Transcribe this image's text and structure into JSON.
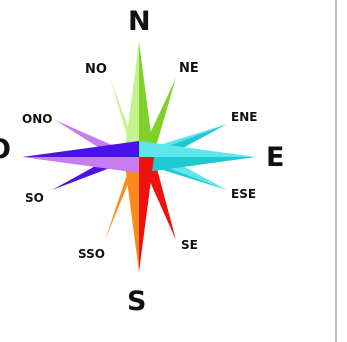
{
  "compass": {
    "labels": {
      "north": "N",
      "south": "S",
      "east": "E",
      "west": "O",
      "northwest": "NO",
      "northeast": "NE",
      "southwest": "SO",
      "southeast": "SE",
      "west_northwest": "ONO",
      "east_northeast": "ENE",
      "east_southeast": "ESE",
      "south_southwest": "SSO"
    },
    "colors": {
      "north_light": "#c3f38e",
      "north_dark": "#7fd12a",
      "east_light": "#5fe6ec",
      "east_dark": "#1fc9d2",
      "south_light": "#ff8a1c",
      "south_dark": "#f01010",
      "west_light": "#c97bf0",
      "west_dark": "#4a12e6"
    }
  }
}
